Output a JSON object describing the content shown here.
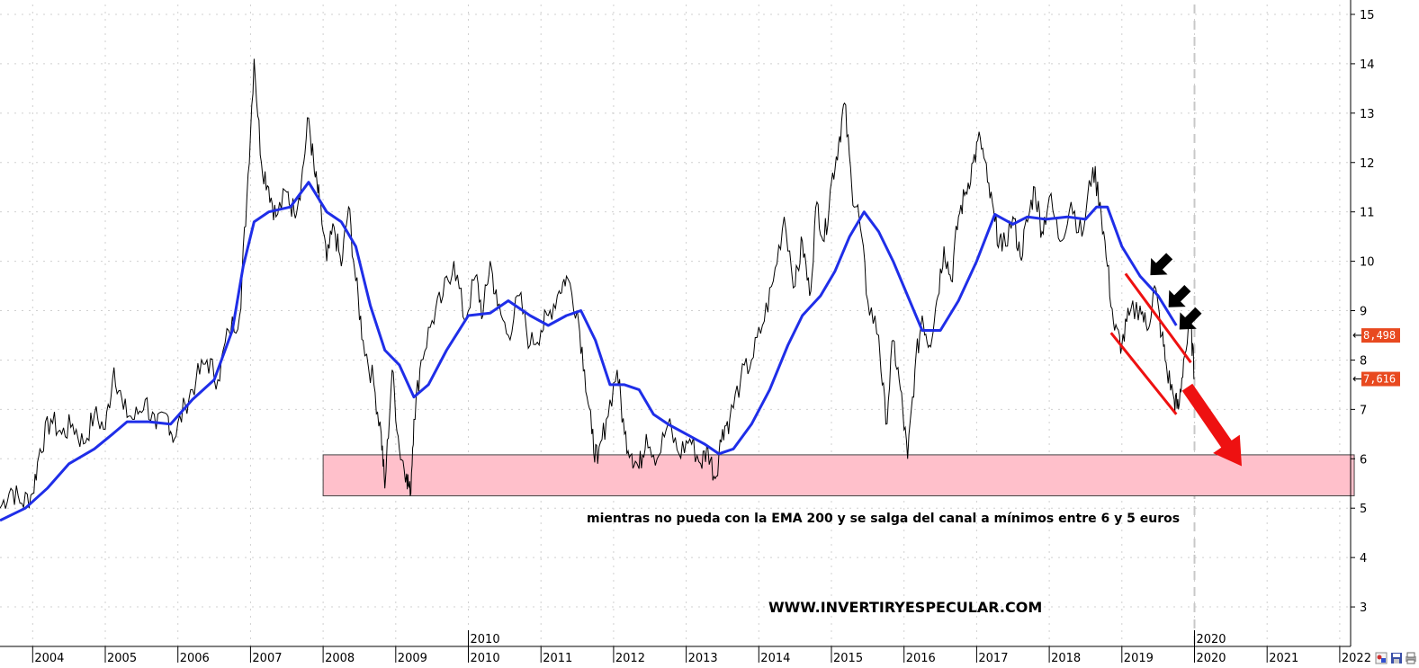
{
  "chart_data": {
    "type": "line",
    "ylim": [
      2.2,
      15.2
    ],
    "xlim": [
      2003.55,
      2022.15
    ],
    "y_ticks": [
      3,
      4,
      5,
      6,
      7,
      8,
      9,
      10,
      11,
      12,
      13,
      14,
      15
    ],
    "x_ticks": [
      {
        "value": 2004,
        "label": "2004"
      },
      {
        "value": 2005,
        "label": "2005"
      },
      {
        "value": 2006,
        "label": "2006"
      },
      {
        "value": 2007,
        "label": "2007"
      },
      {
        "value": 2008,
        "label": "2008"
      },
      {
        "value": 2009,
        "label": "2009"
      },
      {
        "value": 2010,
        "label": "2010"
      },
      {
        "value": 2011,
        "label": "2011"
      },
      {
        "value": 2012,
        "label": "2012"
      },
      {
        "value": 2013,
        "label": "2013"
      },
      {
        "value": 2014,
        "label": "2014"
      },
      {
        "value": 2015,
        "label": "2015"
      },
      {
        "value": 2016,
        "label": "2016"
      },
      {
        "value": 2017,
        "label": "2017"
      },
      {
        "value": 2018,
        "label": "2018"
      },
      {
        "value": 2019,
        "label": "2019"
      },
      {
        "value": 2020,
        "label": "2020"
      },
      {
        "value": 2021,
        "label": "2021"
      },
      {
        "value": 2022,
        "label": "2022"
      }
    ],
    "top_date_labels": [
      {
        "value": 2010,
        "label": "2010"
      },
      {
        "value": 2020,
        "label": "2020"
      }
    ],
    "grid": true,
    "series": [
      {
        "color": "#000000",
        "style": "daily close, jagged",
        "points": [
          [
            2003.55,
            5.0
          ],
          [
            2003.7,
            5.4
          ],
          [
            2003.85,
            5.1
          ],
          [
            2004.0,
            5.3
          ],
          [
            2004.1,
            6.2
          ],
          [
            2004.25,
            6.8
          ],
          [
            2004.4,
            6.5
          ],
          [
            2004.55,
            6.7
          ],
          [
            2004.7,
            6.3
          ],
          [
            2004.85,
            6.9
          ],
          [
            2005.0,
            6.6
          ],
          [
            2005.12,
            7.85
          ],
          [
            2005.25,
            7.0
          ],
          [
            2005.4,
            6.8
          ],
          [
            2005.55,
            7.2
          ],
          [
            2005.7,
            6.6
          ],
          [
            2005.85,
            6.9
          ],
          [
            2005.95,
            6.4
          ],
          [
            2006.1,
            7.1
          ],
          [
            2006.25,
            7.6
          ],
          [
            2006.4,
            8.0
          ],
          [
            2006.55,
            7.6
          ],
          [
            2006.7,
            8.6
          ],
          [
            2006.85,
            8.9
          ],
          [
            2006.95,
            11.3
          ],
          [
            2007.05,
            14.1
          ],
          [
            2007.15,
            12.0
          ],
          [
            2007.25,
            11.5
          ],
          [
            2007.35,
            10.9
          ],
          [
            2007.5,
            11.4
          ],
          [
            2007.6,
            11.0
          ],
          [
            2007.7,
            11.6
          ],
          [
            2007.8,
            12.9
          ],
          [
            2007.88,
            11.8
          ],
          [
            2007.95,
            11.2
          ],
          [
            2008.05,
            10.0
          ],
          [
            2008.15,
            10.7
          ],
          [
            2008.25,
            9.9
          ],
          [
            2008.35,
            11.1
          ],
          [
            2008.45,
            9.6
          ],
          [
            2008.55,
            8.4
          ],
          [
            2008.7,
            7.5
          ],
          [
            2008.8,
            6.5
          ],
          [
            2008.85,
            5.4
          ],
          [
            2008.95,
            7.8
          ],
          [
            2009.05,
            6.2
          ],
          [
            2009.15,
            5.7
          ],
          [
            2009.2,
            5.25
          ],
          [
            2009.25,
            6.8
          ],
          [
            2009.35,
            8.0
          ],
          [
            2009.5,
            8.8
          ],
          [
            2009.65,
            9.3
          ],
          [
            2009.8,
            10.0
          ],
          [
            2009.95,
            8.8
          ],
          [
            2010.1,
            9.7
          ],
          [
            2010.2,
            8.9
          ],
          [
            2010.3,
            10.0
          ],
          [
            2010.4,
            9.1
          ],
          [
            2010.55,
            8.5
          ],
          [
            2010.7,
            9.3
          ],
          [
            2010.85,
            8.3
          ],
          [
            2011.0,
            8.6
          ],
          [
            2011.1,
            8.9
          ],
          [
            2011.25,
            9.4
          ],
          [
            2011.35,
            9.7
          ],
          [
            2011.5,
            9.0
          ],
          [
            2011.6,
            7.8
          ],
          [
            2011.7,
            6.5
          ],
          [
            2011.78,
            5.9
          ],
          [
            2011.9,
            6.8
          ],
          [
            2012.05,
            7.8
          ],
          [
            2012.15,
            6.5
          ],
          [
            2012.25,
            6.1
          ],
          [
            2012.35,
            5.8
          ],
          [
            2012.45,
            6.5
          ],
          [
            2012.6,
            6.0
          ],
          [
            2012.75,
            6.7
          ],
          [
            2012.9,
            6.1
          ],
          [
            2013.05,
            6.4
          ],
          [
            2013.2,
            5.9
          ],
          [
            2013.3,
            6.2
          ],
          [
            2013.4,
            5.6
          ],
          [
            2013.5,
            6.6
          ],
          [
            2013.6,
            6.8
          ],
          [
            2013.75,
            7.6
          ],
          [
            2013.9,
            8.0
          ],
          [
            2014.05,
            8.7
          ],
          [
            2014.2,
            9.6
          ],
          [
            2014.35,
            10.9
          ],
          [
            2014.5,
            9.5
          ],
          [
            2014.6,
            10.4
          ],
          [
            2014.7,
            9.3
          ],
          [
            2014.8,
            11.2
          ],
          [
            2014.9,
            10.4
          ],
          [
            2015.0,
            11.6
          ],
          [
            2015.1,
            12.4
          ],
          [
            2015.18,
            13.2
          ],
          [
            2015.28,
            11.5
          ],
          [
            2015.38,
            10.9
          ],
          [
            2015.5,
            9.2
          ],
          [
            2015.65,
            8.5
          ],
          [
            2015.75,
            6.7
          ],
          [
            2015.85,
            8.4
          ],
          [
            2015.95,
            7.4
          ],
          [
            2016.05,
            6.0
          ],
          [
            2016.15,
            7.8
          ],
          [
            2016.25,
            8.9
          ],
          [
            2016.35,
            8.3
          ],
          [
            2016.45,
            9.2
          ],
          [
            2016.55,
            10.3
          ],
          [
            2016.65,
            9.6
          ],
          [
            2016.75,
            10.9
          ],
          [
            2016.85,
            11.4
          ],
          [
            2016.95,
            12.0
          ],
          [
            2017.05,
            12.5
          ],
          [
            2017.15,
            11.6
          ],
          [
            2017.25,
            10.8
          ],
          [
            2017.35,
            10.2
          ],
          [
            2017.5,
            10.9
          ],
          [
            2017.6,
            10.1
          ],
          [
            2017.7,
            10.8
          ],
          [
            2017.8,
            11.5
          ],
          [
            2017.9,
            10.6
          ],
          [
            2018.0,
            11.3
          ],
          [
            2018.15,
            10.4
          ],
          [
            2018.3,
            11.2
          ],
          [
            2018.45,
            10.5
          ],
          [
            2018.6,
            11.9
          ],
          [
            2018.7,
            11.2
          ],
          [
            2018.8,
            9.9
          ],
          [
            2018.9,
            8.6
          ],
          [
            2019.0,
            8.3
          ],
          [
            2019.1,
            8.9
          ],
          [
            2019.25,
            9.1
          ],
          [
            2019.35,
            8.6
          ],
          [
            2019.45,
            9.5
          ],
          [
            2019.55,
            8.5
          ],
          [
            2019.62,
            7.8
          ],
          [
            2019.72,
            7.2
          ],
          [
            2019.78,
            7.0
          ],
          [
            2019.85,
            8.0
          ],
          [
            2019.95,
            8.7
          ],
          [
            2020.0,
            7.616
          ]
        ]
      },
      {
        "color": "#1f2ee8",
        "style": "EMA 200, dotted thick",
        "points": [
          [
            2003.55,
            4.75
          ],
          [
            2003.9,
            5.0
          ],
          [
            2004.2,
            5.4
          ],
          [
            2004.5,
            5.9
          ],
          [
            2004.85,
            6.2
          ],
          [
            2005.1,
            6.5
          ],
          [
            2005.3,
            6.75
          ],
          [
            2005.6,
            6.75
          ],
          [
            2005.9,
            6.7
          ],
          [
            2006.2,
            7.2
          ],
          [
            2006.5,
            7.6
          ],
          [
            2006.75,
            8.6
          ],
          [
            2006.9,
            9.9
          ],
          [
            2007.05,
            10.8
          ],
          [
            2007.25,
            11.0
          ],
          [
            2007.55,
            11.1
          ],
          [
            2007.8,
            11.6
          ],
          [
            2008.05,
            11.0
          ],
          [
            2008.25,
            10.8
          ],
          [
            2008.45,
            10.3
          ],
          [
            2008.65,
            9.1
          ],
          [
            2008.85,
            8.2
          ],
          [
            2009.05,
            7.9
          ],
          [
            2009.25,
            7.25
          ],
          [
            2009.45,
            7.5
          ],
          [
            2009.7,
            8.2
          ],
          [
            2010.0,
            8.9
          ],
          [
            2010.3,
            8.95
          ],
          [
            2010.55,
            9.2
          ],
          [
            2010.85,
            8.9
          ],
          [
            2011.1,
            8.7
          ],
          [
            2011.35,
            8.9
          ],
          [
            2011.55,
            9.0
          ],
          [
            2011.75,
            8.4
          ],
          [
            2011.95,
            7.5
          ],
          [
            2012.15,
            7.5
          ],
          [
            2012.35,
            7.4
          ],
          [
            2012.55,
            6.9
          ],
          [
            2012.75,
            6.7
          ],
          [
            2013.0,
            6.5
          ],
          [
            2013.25,
            6.3
          ],
          [
            2013.45,
            6.1
          ],
          [
            2013.65,
            6.2
          ],
          [
            2013.9,
            6.7
          ],
          [
            2014.15,
            7.4
          ],
          [
            2014.4,
            8.3
          ],
          [
            2014.6,
            8.9
          ],
          [
            2014.85,
            9.3
          ],
          [
            2015.05,
            9.8
          ],
          [
            2015.25,
            10.5
          ],
          [
            2015.45,
            11.0
          ],
          [
            2015.65,
            10.6
          ],
          [
            2015.85,
            10.0
          ],
          [
            2016.05,
            9.3
          ],
          [
            2016.25,
            8.6
          ],
          [
            2016.5,
            8.6
          ],
          [
            2016.75,
            9.2
          ],
          [
            2017.0,
            10.0
          ],
          [
            2017.25,
            10.95
          ],
          [
            2017.5,
            10.75
          ],
          [
            2017.7,
            10.9
          ],
          [
            2017.95,
            10.85
          ],
          [
            2018.25,
            10.9
          ],
          [
            2018.5,
            10.85
          ],
          [
            2018.65,
            11.1
          ],
          [
            2018.8,
            11.1
          ],
          [
            2019.0,
            10.3
          ],
          [
            2019.25,
            9.7
          ],
          [
            2019.5,
            9.3
          ],
          [
            2019.75,
            8.7
          ]
        ]
      }
    ],
    "support_zone": {
      "x_from": 2008.0,
      "x_to": 2022.2,
      "y_from": 5.25,
      "y_to": 6.08,
      "color": "#ffc0cb"
    },
    "channel_lines": [
      {
        "color": "#ee1111",
        "from": [
          2019.05,
          9.75
        ],
        "to": [
          2019.95,
          7.95
        ]
      },
      {
        "color": "#ee1111",
        "from": [
          2018.85,
          8.55
        ],
        "to": [
          2019.75,
          6.9
        ]
      }
    ],
    "down_arrow": {
      "color": "#ee1111",
      "from": [
        2019.9,
        7.45
      ],
      "to": [
        2020.65,
        5.85
      ]
    },
    "black_arrows": [
      {
        "x": 2019.55,
        "y": 9.95
      },
      {
        "x": 2019.8,
        "y": 9.3
      },
      {
        "x": 2019.95,
        "y": 8.85
      }
    ],
    "last_values": [
      {
        "value": "8,498",
        "y": 8.498
      },
      {
        "value": "7,616",
        "y": 7.616
      }
    ],
    "annotation": "mientras no pueda con la EMA 200 y se salga del canal a mínimos entre 6 y 5 euros",
    "website": "WWW.INVERTIRYESPECULAR.COM"
  },
  "toolbar": {
    "icons": [
      "chart-settings-icon",
      "save-disk-icon",
      "print-icon"
    ]
  }
}
